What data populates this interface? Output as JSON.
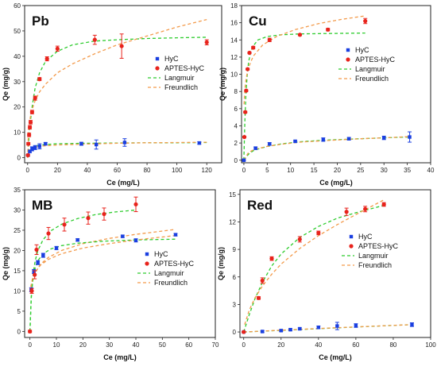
{
  "colors": {
    "hyc": "#1a3fe0",
    "aptes": "#e8231c",
    "langmuir": "#2ecc2e",
    "freundlich": "#f39a4a",
    "axis": "#222222"
  },
  "chart_data": [
    {
      "type": "scatter",
      "title": "Pb",
      "xlabel": "Ce (mg/L)",
      "ylabel": "Qe (mg/g)",
      "xlim": [
        -2,
        130
      ],
      "ylim": [
        -2,
        60
      ],
      "xticks": [
        0,
        20,
        40,
        60,
        80,
        100,
        120
      ],
      "yticks": [
        0,
        10,
        20,
        30,
        40,
        50,
        60
      ],
      "legend_position": "right-middle",
      "series": [
        {
          "name": "HyC",
          "kind": "points",
          "marker": "square",
          "color": "#1a3fe0",
          "x": [
            0.3,
            1.5,
            3,
            5,
            8,
            12,
            36,
            46,
            65,
            115
          ],
          "y": [
            1,
            2.5,
            3.5,
            4,
            4.5,
            5.5,
            5.5,
            5.2,
            6,
            5.8
          ],
          "err": [
            0.3,
            0.5,
            0.8,
            0.8,
            1,
            0.5,
            0.6,
            1.8,
            1.5,
            0.5
          ]
        },
        {
          "name": "APTES-HyC",
          "kind": "points",
          "marker": "circle",
          "color": "#e8231c",
          "x": [
            0.2,
            0.5,
            1,
            1.5,
            2,
            3,
            5,
            8,
            13,
            20,
            45,
            63,
            120
          ],
          "y": [
            1,
            5.5,
            9,
            12,
            14,
            18,
            23.5,
            31,
            39,
            43,
            46.5,
            44,
            45.5
          ],
          "err": [
            0.3,
            0.5,
            0.7,
            0.7,
            0.7,
            0.7,
            0.8,
            0.6,
            0.8,
            1,
            1.8,
            4.8,
            1
          ]
        },
        {
          "name": "Langmuir",
          "kind": "line",
          "style": "dashed",
          "color": "#2ecc2e",
          "x": [
            0,
            0.5,
            1,
            2,
            3,
            5,
            8,
            12,
            20,
            30,
            45,
            60,
            80,
            100,
            120
          ],
          "y": [
            0,
            4.5,
            8.5,
            15,
            20,
            27.5,
            33.5,
            38,
            42,
            44.5,
            46,
            46.5,
            47,
            47.3,
            47.5
          ]
        },
        {
          "name": "Freundlich",
          "kind": "line",
          "style": "dashed",
          "color": "#f39a4a",
          "x": [
            0,
            0.5,
            1,
            2,
            3,
            5,
            8,
            12,
            20,
            30,
            45,
            60,
            80,
            100,
            120
          ],
          "y": [
            0,
            10,
            13,
            16.5,
            19,
            22.5,
            26,
            29,
            33.5,
            37,
            41,
            44.5,
            48,
            51.5,
            54.5
          ]
        },
        {
          "name": "",
          "kind": "line",
          "style": "dashed",
          "color": "#2ecc2e",
          "x": [
            0,
            1,
            3,
            6,
            10,
            20,
            40,
            60,
            80,
            100,
            120
          ],
          "y": [
            0,
            2.5,
            4,
            4.8,
            5.1,
            5.5,
            5.7,
            5.8,
            5.9,
            5.9,
            6
          ]
        },
        {
          "name": "",
          "kind": "line",
          "style": "dashed",
          "color": "#f39a4a",
          "x": [
            0,
            1,
            3,
            6,
            10,
            20,
            40,
            60,
            80,
            100,
            120
          ],
          "y": [
            0,
            3.2,
            3.9,
            4.3,
            4.6,
            5,
            5.4,
            5.7,
            5.9,
            6,
            6.1
          ]
        }
      ]
    },
    {
      "type": "scatter",
      "title": "Cu",
      "xlabel": "Ce (mg/L)",
      "ylabel": "Qe (mg/g)",
      "xlim": [
        -0.5,
        40
      ],
      "ylim": [
        -0.3,
        18
      ],
      "xticks": [
        0,
        5,
        10,
        15,
        20,
        25,
        30,
        35,
        40
      ],
      "yticks": [
        0,
        2,
        4,
        6,
        8,
        10,
        12,
        14,
        16,
        18
      ],
      "legend_position": "right-middle",
      "series": [
        {
          "name": "HyC",
          "kind": "points",
          "marker": "square",
          "color": "#1a3fe0",
          "x": [
            0,
            2.5,
            5.5,
            11,
            17,
            22.5,
            30,
            35.5
          ],
          "y": [
            0,
            1.4,
            1.9,
            2.2,
            2.4,
            2.5,
            2.6,
            2.7
          ],
          "err": [
            0.05,
            0.15,
            0.15,
            0.1,
            0.2,
            0.15,
            0.2,
            0.6
          ]
        },
        {
          "name": "APTES-HyC",
          "kind": "points",
          "marker": "circle",
          "color": "#e8231c",
          "x": [
            0.1,
            0.3,
            0.5,
            0.8,
            1.2,
            2,
            5.5,
            12,
            18,
            26
          ],
          "y": [
            2.7,
            5.6,
            8.1,
            10.6,
            12.5,
            13.1,
            14,
            14.6,
            15.2,
            16.2
          ],
          "err": [
            0.1,
            0.1,
            0.1,
            0.1,
            0.1,
            0.15,
            0.2,
            0.1,
            0.15,
            0.3
          ]
        },
        {
          "name": "Langmuir",
          "kind": "line",
          "style": "dashed",
          "color": "#2ecc2e",
          "x": [
            0,
            0.2,
            0.4,
            0.7,
            1,
            1.5,
            2,
            3,
            5,
            8,
            12,
            18,
            26
          ],
          "y": [
            0,
            4.3,
            7.3,
            9.9,
            11.4,
            12.7,
            13.3,
            14,
            14.4,
            14.6,
            14.7,
            14.75,
            14.8
          ]
        },
        {
          "name": "Freundlich",
          "kind": "line",
          "style": "dashed",
          "color": "#f39a4a",
          "x": [
            0.05,
            0.2,
            0.5,
            1,
            2,
            4,
            7,
            11,
            16,
            21,
            26
          ],
          "y": [
            6.5,
            8.2,
            9.6,
            10.8,
            12.1,
            13.4,
            14.4,
            15.2,
            15.9,
            16.4,
            16.8
          ]
        },
        {
          "name": "",
          "kind": "line",
          "style": "dashed",
          "color": "#2ecc2e",
          "x": [
            0,
            1,
            2,
            3,
            5,
            8,
            12,
            18,
            25,
            30,
            35.5
          ],
          "y": [
            0,
            0.7,
            1.1,
            1.3,
            1.6,
            1.9,
            2.15,
            2.35,
            2.5,
            2.6,
            2.7
          ]
        },
        {
          "name": "",
          "kind": "line",
          "style": "dashed",
          "color": "#f39a4a",
          "x": [
            0,
            1,
            2,
            3,
            5,
            8,
            12,
            18,
            25,
            30,
            35.5
          ],
          "y": [
            0,
            0.9,
            1.2,
            1.35,
            1.6,
            1.85,
            2.1,
            2.3,
            2.5,
            2.6,
            2.75
          ]
        }
      ]
    },
    {
      "type": "scatter",
      "title": "MB",
      "xlabel": "Ce (mg/L)",
      "ylabel": "Qe (mg/g)",
      "xlim": [
        -2,
        70
      ],
      "ylim": [
        -1.5,
        35
      ],
      "xticks": [
        0,
        10,
        20,
        30,
        40,
        50,
        60,
        70
      ],
      "yticks": [
        0,
        5,
        10,
        15,
        20,
        25,
        30,
        35
      ],
      "legend_position": "right-middle",
      "series": [
        {
          "name": "HyC",
          "kind": "points",
          "marker": "square",
          "color": "#1a3fe0",
          "x": [
            0.5,
            1.5,
            3,
            5,
            10,
            18,
            35,
            40,
            55
          ],
          "y": [
            10.3,
            14.8,
            17,
            18.8,
            20.6,
            22.6,
            23.5,
            22.5,
            23.9
          ],
          "err": [
            0.5,
            0.5,
            0.5,
            0.5,
            0.4,
            0.3,
            0.3,
            0.4,
            0.3
          ]
        },
        {
          "name": "APTES-HyC",
          "kind": "points",
          "marker": "circle",
          "color": "#e8231c",
          "x": [
            0,
            0.7,
            1.8,
            2.5,
            7,
            13,
            22,
            28,
            40
          ],
          "y": [
            0,
            10,
            14,
            20.2,
            24.2,
            26.4,
            28,
            29,
            31.4
          ],
          "err": [
            0.3,
            0.6,
            1,
            1.2,
            1.5,
            1.6,
            1.5,
            1.5,
            1.8
          ]
        },
        {
          "name": "Langmuir",
          "kind": "line",
          "style": "dashed",
          "color": "#2ecc2e",
          "x": [
            0,
            0.5,
            1,
            1.5,
            2,
            3,
            5,
            8,
            12,
            18,
            25,
            32,
            40
          ],
          "y": [
            0,
            8,
            12.5,
            15.5,
            17.5,
            20,
            22.7,
            24.9,
            26.5,
            27.9,
            28.9,
            29.5,
            30
          ]
        },
        {
          "name": "Freundlich",
          "kind": "line",
          "style": "dashed",
          "color": "#f39a4a",
          "x": [
            0.3,
            1,
            2,
            4,
            7,
            12,
            20,
            30,
            40,
            50,
            55
          ],
          "y": [
            9.5,
            12.6,
            14.5,
            16.6,
            18.3,
            20,
            21.7,
            23,
            24,
            24.8,
            25.2
          ]
        },
        {
          "name": "",
          "kind": "line",
          "style": "dashed",
          "color": "#2ecc2e",
          "x": [
            0,
            0.5,
            1,
            2,
            3,
            5,
            8,
            12,
            18,
            28,
            40,
            55
          ],
          "y": [
            0,
            8.5,
            12.3,
            15.8,
            17.5,
            19.2,
            20.4,
            21.2,
            21.8,
            22.3,
            22.6,
            22.8
          ]
        },
        {
          "name": "",
          "kind": "line",
          "style": "dashed",
          "color": "#f39a4a",
          "x": [
            0.3,
            1,
            2,
            4,
            7,
            12,
            20,
            30,
            40,
            55
          ],
          "y": [
            11,
            13.2,
            14.7,
            16.4,
            17.8,
            19.2,
            20.6,
            21.7,
            22.6,
            23.7
          ]
        }
      ]
    },
    {
      "type": "scatter",
      "title": "Red",
      "xlabel": "Ce (mg/L)",
      "ylabel": "Qe (mg/g)",
      "xlim": [
        -2,
        100
      ],
      "ylim": [
        -0.6,
        15.5
      ],
      "xticks": [
        0,
        20,
        40,
        60,
        80,
        100
      ],
      "yticks": [
        0,
        3,
        6,
        9,
        12,
        15
      ],
      "legend_position": "right-middle",
      "series": [
        {
          "name": "HyC",
          "kind": "points",
          "marker": "square",
          "color": "#1a3fe0",
          "x": [
            0,
            10,
            20,
            25,
            30,
            40,
            50,
            60,
            90
          ],
          "y": [
            0,
            0.05,
            0.15,
            0.25,
            0.35,
            0.5,
            0.65,
            0.7,
            0.8
          ],
          "err": [
            0.05,
            0.1,
            0.1,
            0.1,
            0.1,
            0.15,
            0.4,
            0.2,
            0.2
          ]
        },
        {
          "name": "APTES-HyC",
          "kind": "points",
          "marker": "circle",
          "color": "#e8231c",
          "x": [
            0,
            8,
            10,
            15,
            30,
            40,
            55,
            65,
            75
          ],
          "y": [
            0,
            3.7,
            5.6,
            8,
            10.1,
            10.8,
            13.1,
            13.4,
            13.9
          ],
          "err": [
            0.05,
            0.15,
            0.3,
            0.2,
            0.3,
            0.2,
            0.4,
            0.3,
            0.2
          ]
        },
        {
          "name": "Langmuir",
          "kind": "line",
          "style": "dashed",
          "color": "#2ecc2e",
          "x": [
            0,
            3,
            6,
            10,
            15,
            20,
            30,
            40,
            50,
            60,
            75
          ],
          "y": [
            0,
            1.9,
            3.6,
            5.4,
            7.2,
            8.5,
            10.3,
            11.5,
            12.4,
            13,
            13.8
          ]
        },
        {
          "name": "Freundlich",
          "kind": "line",
          "style": "dashed",
          "color": "#f39a4a",
          "x": [
            0.5,
            3,
            6,
            10,
            15,
            20,
            30,
            40,
            50,
            60,
            75
          ],
          "y": [
            0.8,
            2.4,
            3.7,
            5,
            6.3,
            7.4,
            9.1,
            10.5,
            11.7,
            12.8,
            14.4
          ]
        },
        {
          "name": "",
          "kind": "line",
          "style": "dashed",
          "color": "#2ecc2e",
          "x": [
            0,
            20,
            40,
            60,
            90
          ],
          "y": [
            0,
            0.18,
            0.36,
            0.54,
            0.8
          ]
        },
        {
          "name": "",
          "kind": "line",
          "style": "dashed",
          "color": "#f39a4a",
          "x": [
            0,
            20,
            40,
            60,
            90
          ],
          "y": [
            0,
            0.2,
            0.38,
            0.55,
            0.8
          ]
        }
      ]
    }
  ]
}
